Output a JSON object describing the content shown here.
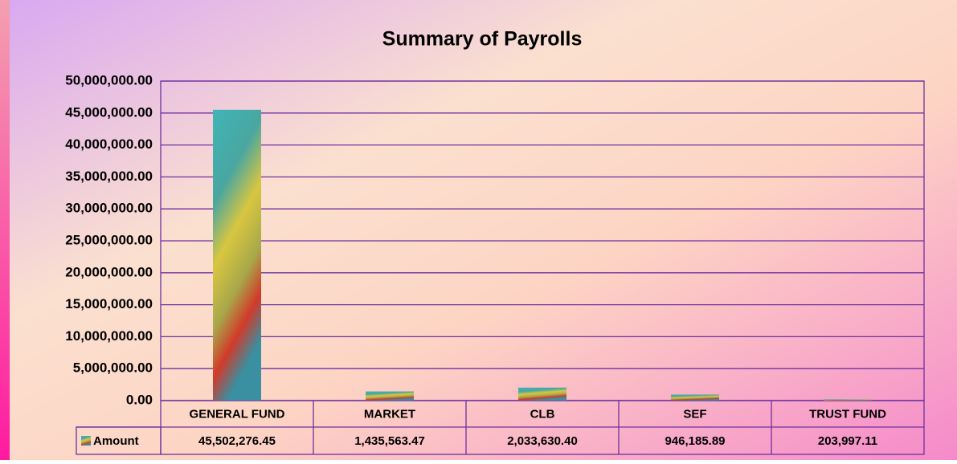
{
  "chart_data": {
    "type": "bar",
    "title": "Summary of Payrolls",
    "categories": [
      "GENERAL FUND",
      "MARKET",
      "CLB",
      "SEF",
      "TRUST FUND"
    ],
    "series": [
      {
        "name": "Amount",
        "values": [
          45502276.45,
          1435563.47,
          2033630.4,
          946185.89,
          203997.11
        ],
        "value_labels": [
          "45,502,276.45",
          "1,435,563.47",
          "2,033,630.40",
          "946,185.89",
          "203,997.11"
        ]
      }
    ],
    "ylim": [
      0,
      50000000
    ],
    "yticks": [
      {
        "value": 0,
        "label": "0.00"
      },
      {
        "value": 5000000,
        "label": "5,000,000.00"
      },
      {
        "value": 10000000,
        "label": "10,000,000.00"
      },
      {
        "value": 15000000,
        "label": "15,000,000.00"
      },
      {
        "value": 20000000,
        "label": "20,000,000.00"
      },
      {
        "value": 25000000,
        "label": "25,000,000.00"
      },
      {
        "value": 30000000,
        "label": "30,000,000.00"
      },
      {
        "value": 35000000,
        "label": "35,000,000.00"
      },
      {
        "value": 40000000,
        "label": "40,000,000.00"
      },
      {
        "value": 45000000,
        "label": "45,000,000.00"
      },
      {
        "value": 50000000,
        "label": "50,000,000.00"
      }
    ],
    "grid": true
  }
}
